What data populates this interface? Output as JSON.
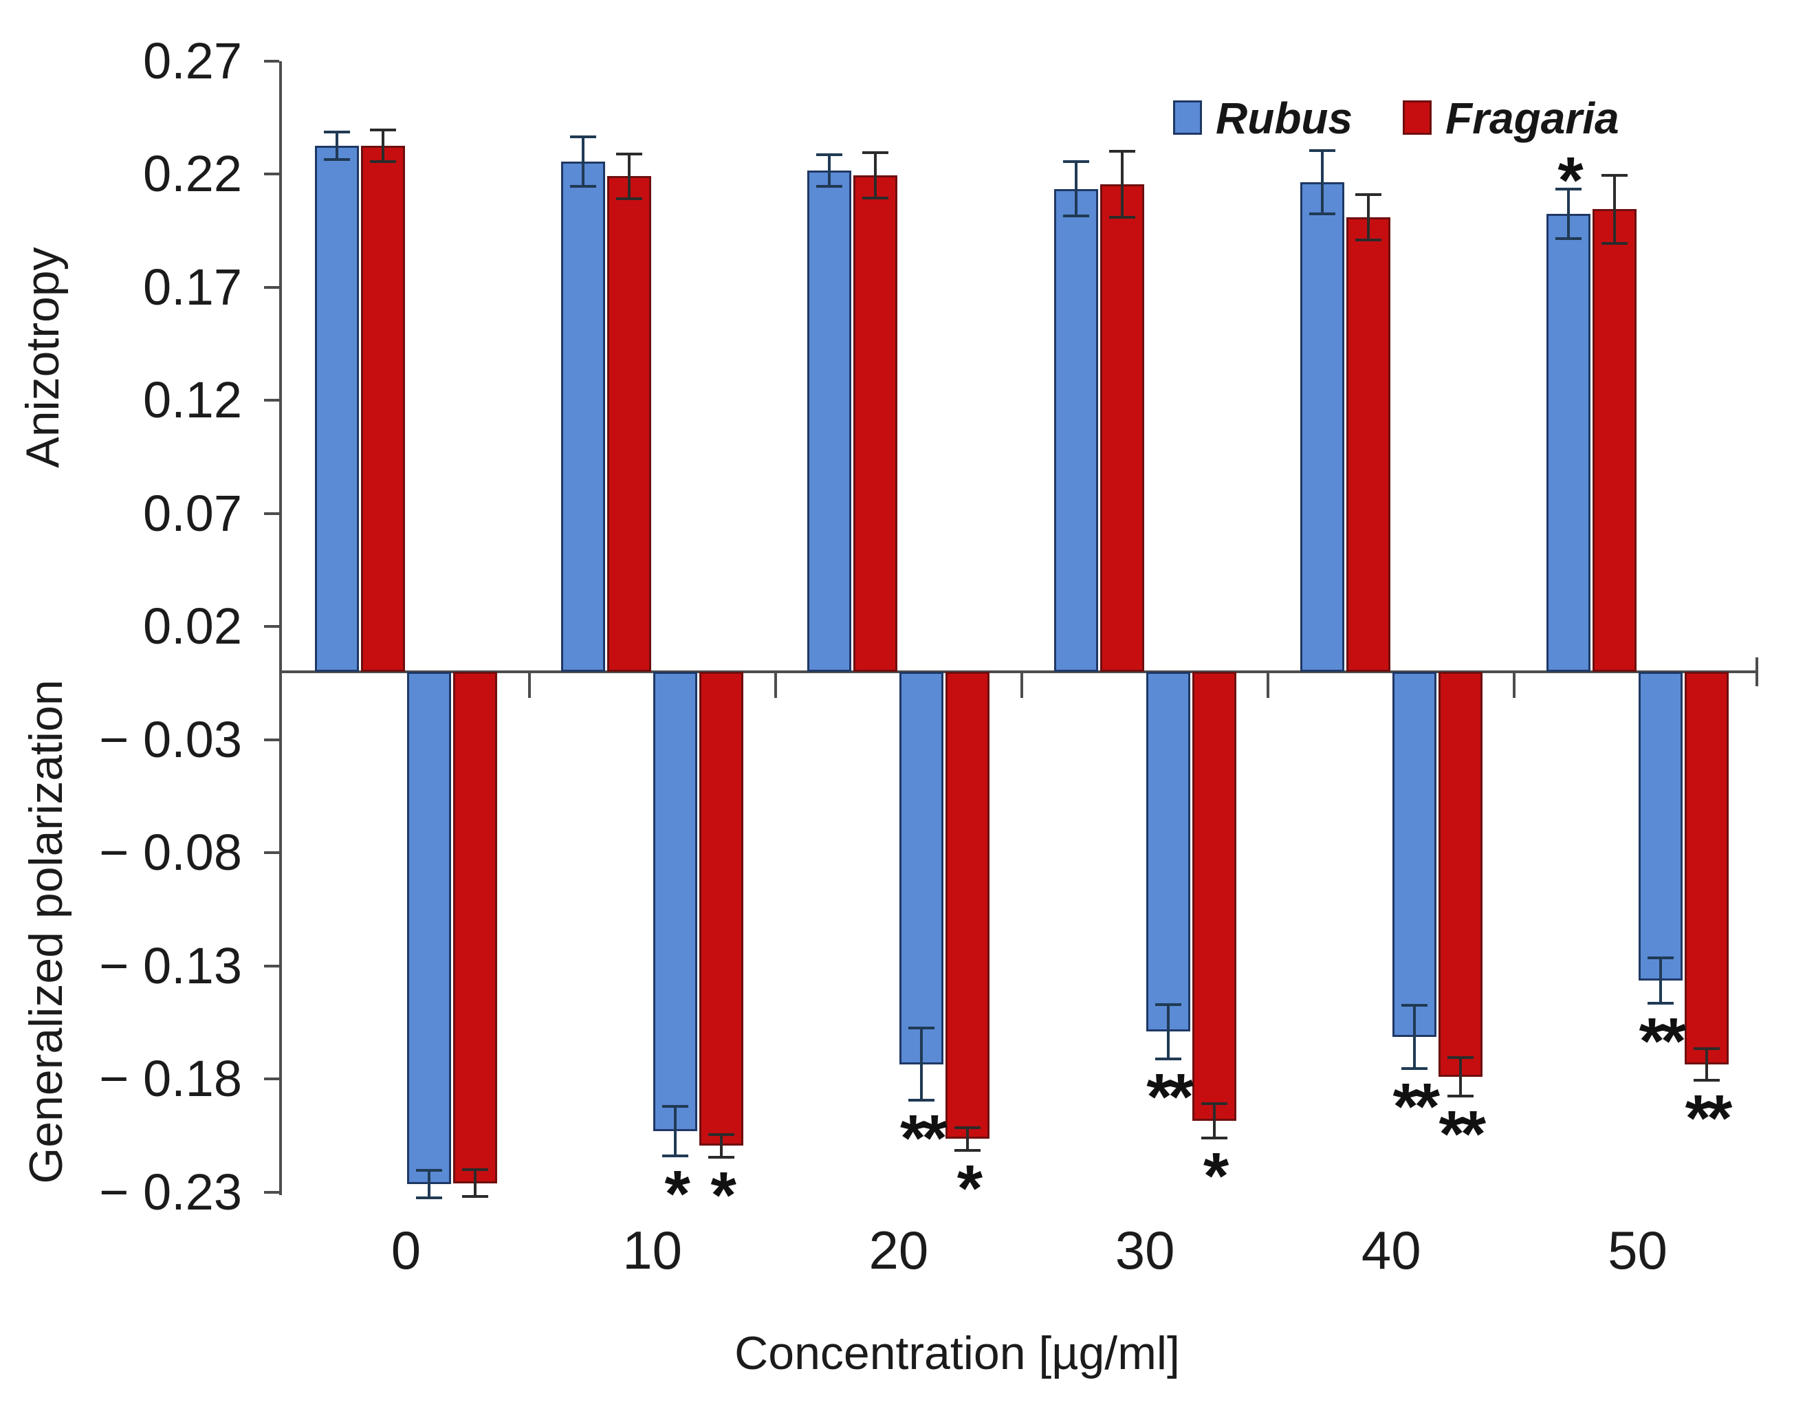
{
  "chart_data": {
    "type": "bar",
    "title": "",
    "xlabel": "Concentration [µg/ml]",
    "ylabel_top": "Anizotropy",
    "ylabel_bottom": "Generalized polarization",
    "categories": [
      "0",
      "10",
      "20",
      "30",
      "40",
      "50"
    ],
    "grid": false,
    "legend_position": "top-right",
    "colors": {
      "rubus_fill": "#5b8bd5",
      "rubus_border": "#1f3864",
      "fragaria_fill": "#c60e10",
      "fragaria_border": "#6e0f0f",
      "axis": "#4d4d4d",
      "error_rubus": "#203a54",
      "error_fragaria": "#2b2b2b"
    },
    "legend": [
      {
        "name": "Rubus",
        "series_key": "rubus"
      },
      {
        "name": "Fragaria",
        "series_key": "fragaria"
      }
    ],
    "yticks": [
      {
        "label": "0.27",
        "value": 0.27
      },
      {
        "label": "0.22",
        "value": 0.22
      },
      {
        "label": "0.17",
        "value": 0.17
      },
      {
        "label": "0.12",
        "value": 0.12
      },
      {
        "label": "0.07",
        "value": 0.07
      },
      {
        "label": "0.02",
        "value": 0.02
      },
      {
        "label": "− 0.03",
        "value": -0.03
      },
      {
        "label": "− 0.08",
        "value": -0.08
      },
      {
        "label": "− 0.13",
        "value": -0.13
      },
      {
        "label": "− 0.18",
        "value": -0.18
      },
      {
        "label": "− 0.23",
        "value": -0.23
      }
    ],
    "ylim": [
      -0.23,
      0.27
    ],
    "panels": [
      {
        "name": "anisotropy",
        "series": [
          {
            "name": "Rubus",
            "key": "rubus",
            "values": [
              0.2325,
              0.2255,
              0.2215,
              0.2135,
              0.2165,
              0.2025
            ],
            "errors": [
              0.006,
              0.011,
              0.007,
              0.012,
              0.014,
              0.011
            ],
            "sig": [
              "",
              "",
              "",
              "",
              "",
              "*"
            ]
          },
          {
            "name": "Fragaria",
            "key": "fragaria",
            "values": [
              0.2325,
              0.219,
              0.2195,
              0.2155,
              0.201,
              0.2045
            ],
            "errors": [
              0.007,
              0.01,
              0.01,
              0.0145,
              0.01,
              0.015
            ],
            "sig": [
              "",
              "",
              "",
              "",
              "",
              ""
            ]
          }
        ]
      },
      {
        "name": "generalized_polarization",
        "series": [
          {
            "name": "Rubus",
            "key": "rubus",
            "values": [
              -0.2265,
              -0.203,
              -0.1735,
              -0.159,
              -0.1615,
              -0.1365
            ],
            "errors": [
              0.006,
              0.011,
              0.016,
              0.012,
              0.014,
              0.01
            ],
            "sig": [
              "",
              "*",
              "**",
              "**",
              "**",
              "**"
            ]
          },
          {
            "name": "Fragaria",
            "key": "fragaria",
            "values": [
              -0.226,
              -0.2095,
              -0.2065,
              -0.1985,
              -0.179,
              -0.1735
            ],
            "errors": [
              0.006,
              0.005,
              0.005,
              0.0075,
              0.0085,
              0.007
            ],
            "sig": [
              "",
              "*",
              "*",
              "*",
              "**",
              "**"
            ]
          }
        ]
      }
    ]
  }
}
